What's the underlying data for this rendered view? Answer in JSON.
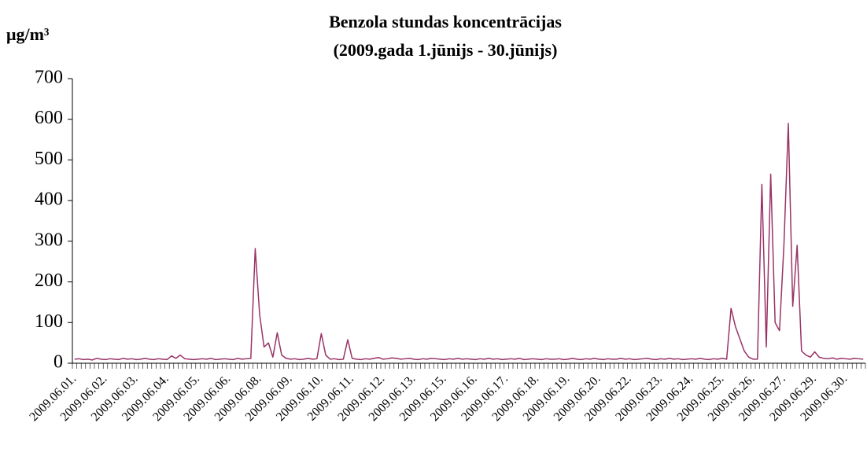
{
  "chart_data": {
    "type": "line",
    "title": "Benzola stundas koncentrācijas",
    "subtitle": "(2009.gada 1.jūnijs - 30.jūnijs)",
    "y_label": "μg/m³",
    "categories": [
      "2009.06.01.",
      null,
      null,
      null,
      null,
      null,
      null,
      "2009.06.02.",
      null,
      null,
      null,
      null,
      null,
      null,
      "2009.06.03.",
      null,
      null,
      null,
      null,
      null,
      null,
      "2009.06.04.",
      null,
      null,
      null,
      null,
      null,
      null,
      "2009.06.05.",
      null,
      null,
      null,
      null,
      null,
      null,
      "2009.06.06.",
      null,
      null,
      null,
      null,
      null,
      null,
      "2009.06.08.",
      null,
      null,
      null,
      null,
      null,
      null,
      "2009.06.09.",
      null,
      null,
      null,
      null,
      null,
      null,
      "2009.06.10.",
      null,
      null,
      null,
      null,
      null,
      null,
      "2009.06.11.",
      null,
      null,
      null,
      null,
      null,
      null,
      "2009.06.12.",
      null,
      null,
      null,
      null,
      null,
      null,
      "2009.06.13.",
      null,
      null,
      null,
      null,
      null,
      null,
      "2009.06.15.",
      null,
      null,
      null,
      null,
      null,
      null,
      "2009.06.16.",
      null,
      null,
      null,
      null,
      null,
      null,
      "2009.06.17.",
      null,
      null,
      null,
      null,
      null,
      null,
      "2009.06.18.",
      null,
      null,
      null,
      null,
      null,
      null,
      "2009.06.19.",
      null,
      null,
      null,
      null,
      null,
      null,
      "2009.06.20.",
      null,
      null,
      null,
      null,
      null,
      null,
      "2009.06.22.",
      null,
      null,
      null,
      null,
      null,
      null,
      "2009.06.23.",
      null,
      null,
      null,
      null,
      null,
      null,
      "2009.06.24.",
      null,
      null,
      null,
      null,
      null,
      null,
      "2009.06.25.",
      null,
      null,
      null,
      null,
      null,
      null,
      "2009.06.26.",
      null,
      null,
      null,
      null,
      null,
      null,
      "2009.06.27.",
      null,
      null,
      null,
      null,
      null,
      null,
      "2009.06.29.",
      null,
      null,
      null,
      null,
      null,
      null,
      "2009.06.30.",
      null,
      null,
      null,
      null
    ],
    "series": [
      {
        "color": "#993366",
        "values": [
          10,
          11,
          9,
          10,
          8,
          12,
          10,
          9,
          11,
          10,
          9,
          12,
          10,
          11,
          9,
          10,
          12,
          10,
          9,
          11,
          10,
          9,
          18,
          12,
          20,
          11,
          10,
          9,
          10,
          11,
          10,
          12,
          9,
          10,
          11,
          10,
          9,
          12,
          10,
          11,
          12,
          282,
          120,
          40,
          50,
          15,
          75,
          20,
          12,
          10,
          11,
          9,
          10,
          12,
          10,
          11,
          73,
          20,
          10,
          11,
          9,
          10,
          58,
          12,
          10,
          9,
          11,
          10,
          12,
          14,
          10,
          11,
          13,
          12,
          10,
          11,
          12,
          10,
          9,
          11,
          10,
          12,
          11,
          10,
          9,
          11,
          10,
          12,
          10,
          11,
          10,
          9,
          11,
          10,
          12,
          10,
          11,
          9,
          10,
          11,
          10,
          12,
          9,
          10,
          11,
          10,
          9,
          11,
          10,
          10,
          11,
          9,
          10,
          12,
          10,
          9,
          11,
          10,
          12,
          10,
          9,
          11,
          10,
          10,
          12,
          10,
          11,
          9,
          10,
          11,
          12,
          10,
          9,
          11,
          10,
          12,
          10,
          11,
          9,
          10,
          11,
          10,
          12,
          10,
          9,
          11,
          10,
          12,
          10,
          135,
          90,
          60,
          30,
          15,
          10,
          10,
          440,
          40,
          465,
          100,
          80,
          290,
          590,
          140,
          290,
          30,
          20,
          15,
          28,
          15,
          12,
          11,
          13,
          10,
          12,
          11,
          10,
          12,
          11,
          10
        ]
      }
    ],
    "ylim": [
      0,
      700
    ],
    "yticks": [
      0,
      100,
      200,
      300,
      400,
      500,
      600,
      700
    ]
  }
}
